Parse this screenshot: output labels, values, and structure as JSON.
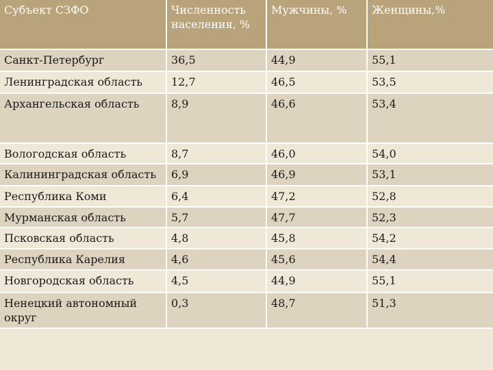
{
  "table": {
    "headers": [
      "Субъект СЗФО",
      "Численность населения, %",
      "Мужчины, %",
      "Женщины,%"
    ],
    "rows": [
      [
        "Санкт-Петербург",
        "36,5",
        "44,9",
        "55,1"
      ],
      [
        "Ленинградская область",
        "12,7",
        "46,5",
        "53,5"
      ],
      [
        "Архангельская область",
        "8,9",
        "46,6",
        "53,4"
      ],
      [
        "Вологодская область",
        "8,7",
        "46,0",
        "54,0"
      ],
      [
        "Калининградская область",
        "6,9",
        "46,9",
        "53,1"
      ],
      [
        "Республика Коми",
        "6,4",
        "47,2",
        "52,8"
      ],
      [
        "Мурманская область",
        "5,7",
        "47,7",
        "52,3"
      ],
      [
        "Псковская область",
        "4,8",
        "45,8",
        "54,2"
      ],
      [
        "Республика Карелия",
        "4,6",
        "45,6",
        "54,4"
      ],
      [
        "Новгородская область",
        "4,5",
        "44,9",
        "55,1"
      ],
      [
        "Ненецкий автономный округ",
        "0,3",
        "48,7",
        "51,3"
      ]
    ]
  },
  "colors": {
    "header_bg": "#b8a37a",
    "row_light": "#efe8d6",
    "row_dark": "#ddd3bf",
    "grid_line": "#ffffff"
  }
}
